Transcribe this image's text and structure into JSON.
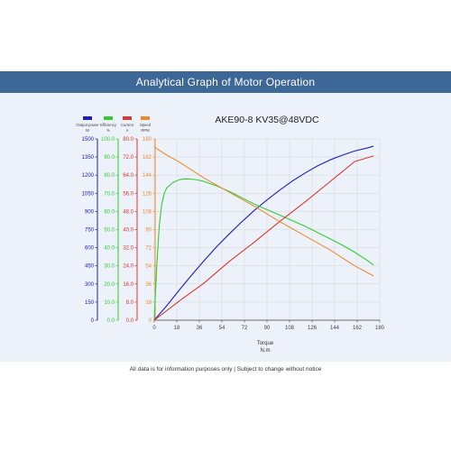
{
  "header": {
    "title": "Analytical Graph of Motor Operation"
  },
  "footer": {
    "note": "All data is for information purposes only | Subject to change without notice"
  },
  "chart_data": {
    "type": "line",
    "title": "AKE90-8 KV35@48VDC",
    "xlabel": "Torque",
    "xunit": "N.m",
    "xlim": [
      0,
      180
    ],
    "xticks": [
      "0",
      "18",
      "36",
      "54",
      "72",
      "90",
      "108",
      "126",
      "144",
      "162",
      "180"
    ],
    "grid": true,
    "legend_placement": "top-left",
    "axes": [
      {
        "id": "power",
        "label": "Output power",
        "unit": "W",
        "color": "#2020b8",
        "ylim": [
          0,
          1500
        ],
        "ticks": [
          "0",
          "150",
          "300",
          "450",
          "600",
          "750",
          "900",
          "1050",
          "1200",
          "1350",
          "1500"
        ]
      },
      {
        "id": "efficiency",
        "label": "Efficiency",
        "unit": "%",
        "color": "#33cc33",
        "ylim": [
          0,
          100
        ],
        "ticks": [
          "0.0",
          "10.0",
          "20.0",
          "30.0",
          "40.0",
          "50.0",
          "60.0",
          "70.0",
          "80.0",
          "90.0",
          "100.0"
        ]
      },
      {
        "id": "current",
        "label": "Current",
        "unit": "A",
        "color": "#d9372f",
        "ylim": [
          0,
          80
        ],
        "ticks": [
          "0.0",
          "8.0",
          "16.0",
          "24.0",
          "32.0",
          "40.0",
          "48.0",
          "56.0",
          "64.0",
          "72.0",
          "80.0"
        ]
      },
      {
        "id": "speed",
        "label": "Speed",
        "unit": "RPM",
        "color": "#ef8a2c",
        "ylim": [
          0,
          180
        ],
        "ticks": [
          "0",
          "18",
          "36",
          "54",
          "72",
          "90",
          "108",
          "126",
          "144",
          "162",
          "180"
        ]
      }
    ],
    "series": [
      {
        "name": "Output power",
        "axis": "power",
        "color": "#2020b8",
        "x": [
          0,
          10,
          20,
          30,
          40,
          50,
          60,
          70,
          80,
          90,
          100,
          110,
          120,
          130,
          140,
          150,
          160,
          170,
          175
        ],
        "y": [
          0,
          120,
          250,
          375,
          495,
          610,
          715,
          815,
          910,
          995,
          1075,
          1150,
          1215,
          1275,
          1325,
          1365,
          1400,
          1425,
          1440
        ]
      },
      {
        "name": "Efficiency",
        "axis": "efficiency",
        "color": "#33cc33",
        "x": [
          0,
          2,
          4,
          6,
          8,
          10,
          15,
          20,
          25,
          30,
          35,
          40,
          50,
          60,
          70,
          80,
          90,
          100,
          110,
          120,
          130,
          140,
          150,
          160,
          170,
          175
        ],
        "y": [
          0,
          30,
          52,
          64,
          70,
          73,
          76,
          77.5,
          78,
          77.8,
          77.3,
          76.5,
          74,
          71,
          67.5,
          64,
          61,
          58,
          55,
          52,
          48.5,
          45,
          41.5,
          37.5,
          33,
          30.5
        ]
      },
      {
        "name": "Current",
        "axis": "current",
        "color": "#d9372f",
        "x": [
          0,
          20,
          40,
          60,
          80,
          100,
          120,
          140,
          160,
          175
        ],
        "y": [
          0,
          8.5,
          16.5,
          26,
          34.5,
          43.5,
          52,
          61,
          70,
          72.5
        ]
      },
      {
        "name": "Speed",
        "axis": "speed",
        "color": "#ef8a2c",
        "x": [
          0,
          10,
          20,
          40,
          60,
          80,
          100,
          120,
          140,
          160,
          175
        ],
        "y": [
          172,
          164,
          157,
          141,
          127,
          113,
          98,
          84,
          70,
          54,
          44
        ]
      }
    ]
  }
}
